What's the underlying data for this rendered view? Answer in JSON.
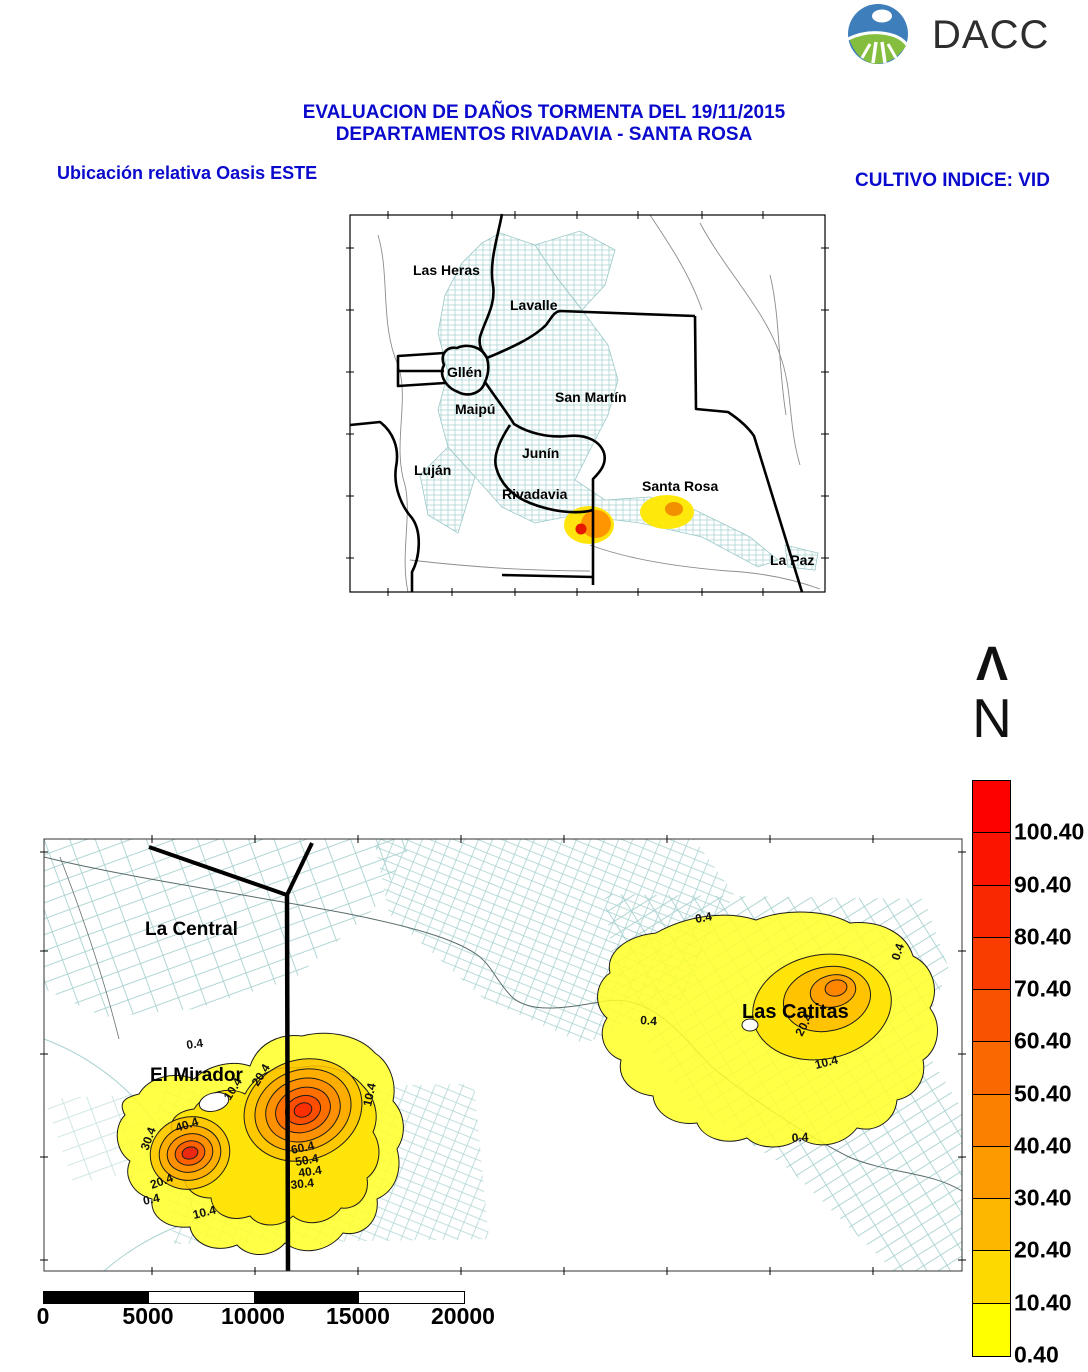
{
  "logo": {
    "text": "DACC",
    "blue": "#3d7ebb",
    "green": "#85bd3f"
  },
  "header": {
    "title_line1": "EVALUACION DE DAÑOS TORMENTA DEL 19/11/2015",
    "title_line2": "DEPARTAMENTOS RIVADAVIA - SANTA ROSA",
    "left_label": "Ubicación relativa Oasis ESTE",
    "right_label": "CULTIVO INDICE: VID",
    "accent_color": "#0a0acd"
  },
  "north_indicator": {
    "arrow": "Λ",
    "letter": "N"
  },
  "overview_map": {
    "labels": {
      "las_heras": "Las Heras",
      "lavalle": "Lavalle",
      "gllen": "Gllén",
      "maipu": "Maipú",
      "san_martin": "San Martín",
      "junin": "Junín",
      "lujan": "Luján",
      "rivadavia": "Rivadavia",
      "santa_rosa": "Santa Rosa",
      "la_paz": "La Paz"
    }
  },
  "detail_map": {
    "places": {
      "la_central": "La Central",
      "el_mirador": "El Mirador",
      "las_catitas": "Las Catitas"
    },
    "contour_levels": {
      "l0": "0.4",
      "l10": "10.4",
      "l20": "20.4",
      "l30": "30.4",
      "l40": "40.4",
      "l50": "50.4",
      "l60": "60.4"
    }
  },
  "legend": {
    "entries": [
      {
        "label": "100.40",
        "color": "#fd0000"
      },
      {
        "label": "90.40",
        "color": "#fb1400"
      },
      {
        "label": "80.40",
        "color": "#fa2800"
      },
      {
        "label": "70.40",
        "color": "#f93d00"
      },
      {
        "label": "60.40",
        "color": "#f95200"
      },
      {
        "label": "50.40",
        "color": "#fa6800"
      },
      {
        "label": "40.40",
        "color": "#fb8000"
      },
      {
        "label": "30.40",
        "color": "#fc9a00"
      },
      {
        "label": "20.40",
        "color": "#fdb700"
      },
      {
        "label": "10.40",
        "color": "#fed900"
      },
      {
        "label": "0.40",
        "color": "#ffff00"
      }
    ]
  },
  "scalebar": {
    "labels": [
      "0",
      "5000",
      "10000",
      "15000",
      "20000"
    ],
    "segments": [
      "#000000",
      "#ffffff",
      "#000000",
      "#ffffff"
    ]
  }
}
